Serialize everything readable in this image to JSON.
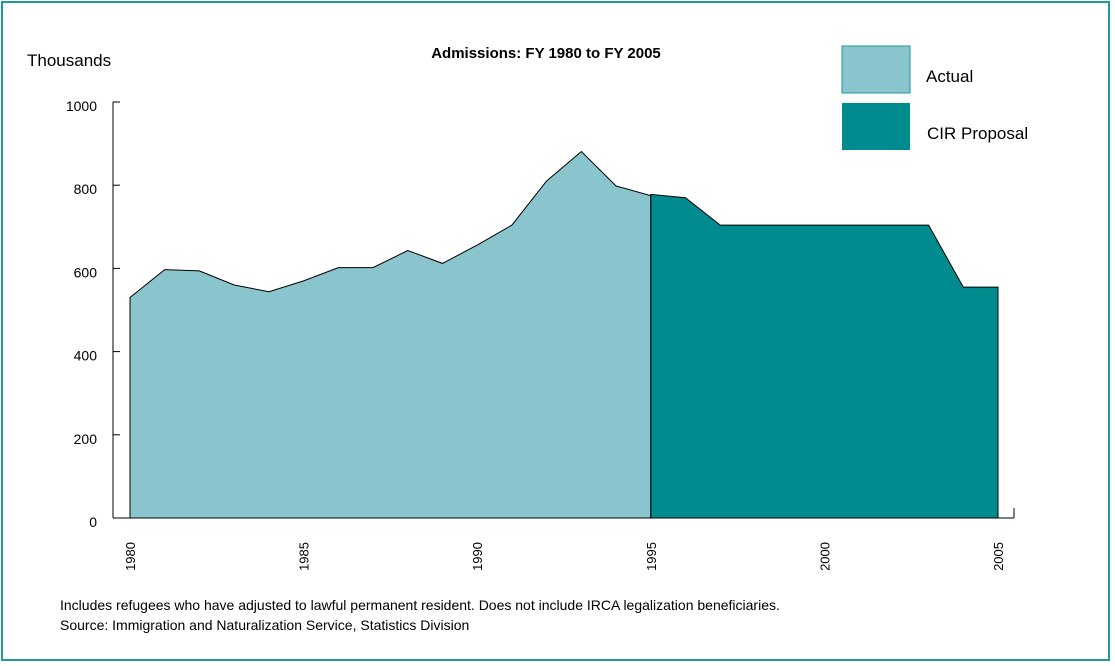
{
  "chart_data": {
    "type": "area",
    "title": "Admissions: FY 1980 to FY 2005",
    "ylabel": "Thousands",
    "xlabel": "",
    "xlim": [
      1980,
      2005
    ],
    "ylim": [
      0,
      1000
    ],
    "x_ticks": [
      1980,
      1985,
      1990,
      1995,
      2000,
      2005
    ],
    "y_ticks": [
      0,
      200,
      400,
      600,
      800,
      1000
    ],
    "grid": false,
    "legend_position": "top-right",
    "series": [
      {
        "name": "Actual",
        "color": "#8ac4cc",
        "x": [
          1980,
          1981,
          1982,
          1983,
          1984,
          1985,
          1986,
          1987,
          1988,
          1989,
          1990,
          1991,
          1992,
          1993,
          1994,
          1995
        ],
        "values": [
          530,
          597,
          594,
          560,
          544,
          570,
          602,
          602,
          643,
          612,
          656,
          704,
          810,
          881,
          798,
          775
        ]
      },
      {
        "name": "CIR Proposal",
        "color": "#008b8f",
        "x": [
          1995,
          1996,
          1997,
          1998,
          1999,
          2000,
          2001,
          2002,
          2003,
          2004,
          2005
        ],
        "values": [
          778,
          770,
          704,
          704,
          704,
          704,
          704,
          704,
          704,
          555,
          555
        ]
      }
    ]
  },
  "footnotes": {
    "line1": "Includes refugees who have adjusted to lawful permanent resident.  Does not include IRCA legalization beneficiaries.",
    "line2": "Source: Immigration and Naturalization Service, Statistics Division"
  }
}
